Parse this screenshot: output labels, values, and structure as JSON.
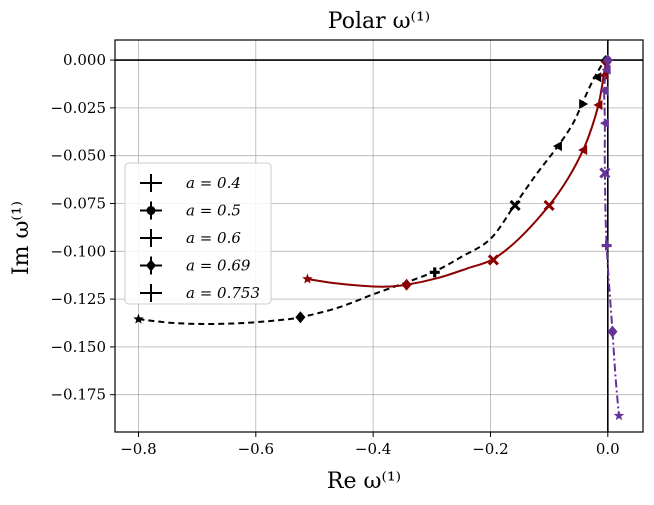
{
  "chart_data": {
    "type": "line",
    "title": "Polar ω⁽¹⁾",
    "xlabel": "Re ω⁽¹⁾",
    "ylabel": "Im ω⁽¹⁾",
    "xlim": [
      -0.84,
      0.06
    ],
    "ylim": [
      -0.1945,
      0.0105
    ],
    "grid": true,
    "legend_position": "center-left",
    "xticks": [
      {
        "value": -0.8,
        "label": "−0.8"
      },
      {
        "value": -0.6,
        "label": "−0.6"
      },
      {
        "value": -0.4,
        "label": "−0.4"
      },
      {
        "value": -0.2,
        "label": "−0.2"
      },
      {
        "value": 0.0,
        "label": "0.0"
      }
    ],
    "yticks": [
      {
        "value": 0.0,
        "label": "0.000"
      },
      {
        "value": -0.025,
        "label": "−0.025"
      },
      {
        "value": -0.05,
        "label": "−0.050"
      },
      {
        "value": -0.075,
        "label": "−0.075"
      },
      {
        "value": -0.1,
        "label": "−0.100"
      },
      {
        "value": -0.125,
        "label": "−0.125"
      },
      {
        "value": -0.15,
        "label": "−0.150"
      },
      {
        "value": -0.175,
        "label": "−0.175"
      }
    ],
    "legend": [
      {
        "label": "a = 0.4",
        "marker": "plus"
      },
      {
        "label": "a = 0.5",
        "marker": "circle"
      },
      {
        "label": "a = 0.6",
        "marker": "plus"
      },
      {
        "label": "a = 0.69",
        "marker": "diamond"
      },
      {
        "label": "a = 0.753",
        "marker": "plus"
      }
    ],
    "series": [
      {
        "name": "black-dashed",
        "color": "#000000",
        "dash": "dashed",
        "curve": [
          [
            -0.8,
            -0.1355
          ],
          [
            -0.74,
            -0.1375
          ],
          [
            -0.68,
            -0.138
          ],
          [
            -0.62,
            -0.1375
          ],
          [
            -0.56,
            -0.136
          ],
          [
            -0.524,
            -0.1345
          ],
          [
            -0.46,
            -0.1295
          ],
          [
            -0.4,
            -0.1225
          ],
          [
            -0.35,
            -0.117
          ],
          [
            -0.295,
            -0.1105
          ],
          [
            -0.25,
            -0.103
          ],
          [
            -0.2,
            -0.0935
          ],
          [
            -0.158,
            -0.0755
          ],
          [
            -0.12,
            -0.059
          ],
          [
            -0.085,
            -0.045
          ],
          [
            -0.06,
            -0.0335
          ],
          [
            -0.044,
            -0.023
          ],
          [
            -0.03,
            -0.0135
          ],
          [
            -0.018,
            -0.0065
          ],
          [
            -0.008,
            -0.0015
          ],
          [
            -0.004,
            0.0
          ]
        ],
        "markers": [
          {
            "x": -0.8,
            "y": -0.1355,
            "shape": "star"
          },
          {
            "x": -0.524,
            "y": -0.1345,
            "shape": "diamond"
          },
          {
            "x": -0.295,
            "y": -0.111,
            "shape": "plus"
          },
          {
            "x": -0.158,
            "y": -0.076,
            "shape": "x"
          },
          {
            "x": -0.085,
            "y": -0.045,
            "shape": "tri-left"
          },
          {
            "x": -0.042,
            "y": -0.023,
            "shape": "tri-right"
          },
          {
            "x": -0.018,
            "y": -0.009,
            "shape": "tri-left"
          },
          {
            "x": -0.004,
            "y": -0.0005,
            "shape": "diamond"
          }
        ]
      },
      {
        "name": "dark-red-solid",
        "color": "#8b0000",
        "dash": "solid",
        "curve": [
          [
            -0.512,
            -0.1145
          ],
          [
            -0.47,
            -0.1165
          ],
          [
            -0.42,
            -0.118
          ],
          [
            -0.38,
            -0.1185
          ],
          [
            -0.343,
            -0.1175
          ],
          [
            -0.29,
            -0.114
          ],
          [
            -0.24,
            -0.109
          ],
          [
            -0.195,
            -0.104
          ],
          [
            -0.15,
            -0.093
          ],
          [
            -0.1,
            -0.076
          ],
          [
            -0.068,
            -0.062
          ],
          [
            -0.042,
            -0.047
          ],
          [
            -0.027,
            -0.035
          ],
          [
            -0.016,
            -0.0235
          ],
          [
            -0.01,
            -0.014
          ],
          [
            -0.007,
            -0.008
          ],
          [
            -0.004,
            -0.003
          ],
          [
            -0.002,
            0.0
          ]
        ],
        "markers": [
          {
            "x": -0.512,
            "y": -0.1145,
            "shape": "star"
          },
          {
            "x": -0.343,
            "y": -0.1175,
            "shape": "diamond"
          },
          {
            "x": -0.195,
            "y": -0.1045,
            "shape": "x"
          },
          {
            "x": -0.1,
            "y": -0.076,
            "shape": "x"
          },
          {
            "x": -0.042,
            "y": -0.047,
            "shape": "tri-left"
          },
          {
            "x": -0.016,
            "y": -0.0235,
            "shape": "tri-left"
          },
          {
            "x": -0.006,
            "y": -0.008,
            "shape": "tri-left"
          },
          {
            "x": -0.002,
            "y": -0.001,
            "shape": "diamond"
          }
        ]
      },
      {
        "name": "purple-dashdot",
        "color": "#663399",
        "dash": "dashdot",
        "curve": [
          [
            0.0,
            0.0
          ],
          [
            -0.003,
            -0.005
          ],
          [
            -0.006,
            -0.016
          ],
          [
            -0.005,
            -0.033
          ],
          [
            -0.005,
            -0.059
          ],
          [
            -0.002,
            -0.097
          ],
          [
            0.008,
            -0.142
          ],
          [
            0.013,
            -0.165
          ],
          [
            0.019,
            -0.186
          ]
        ],
        "markers": [
          {
            "x": 0.0,
            "y": 0.0,
            "shape": "diamond"
          },
          {
            "x": -0.002,
            "y": -0.005,
            "shape": "tri-left"
          },
          {
            "x": -0.006,
            "y": -0.016,
            "shape": "tri-left"
          },
          {
            "x": -0.005,
            "y": -0.033,
            "shape": "tri-left"
          },
          {
            "x": -0.005,
            "y": -0.059,
            "shape": "x"
          },
          {
            "x": -0.002,
            "y": -0.097,
            "shape": "plus"
          },
          {
            "x": 0.008,
            "y": -0.142,
            "shape": "diamond"
          },
          {
            "x": 0.019,
            "y": -0.186,
            "shape": "star"
          }
        ]
      }
    ]
  }
}
